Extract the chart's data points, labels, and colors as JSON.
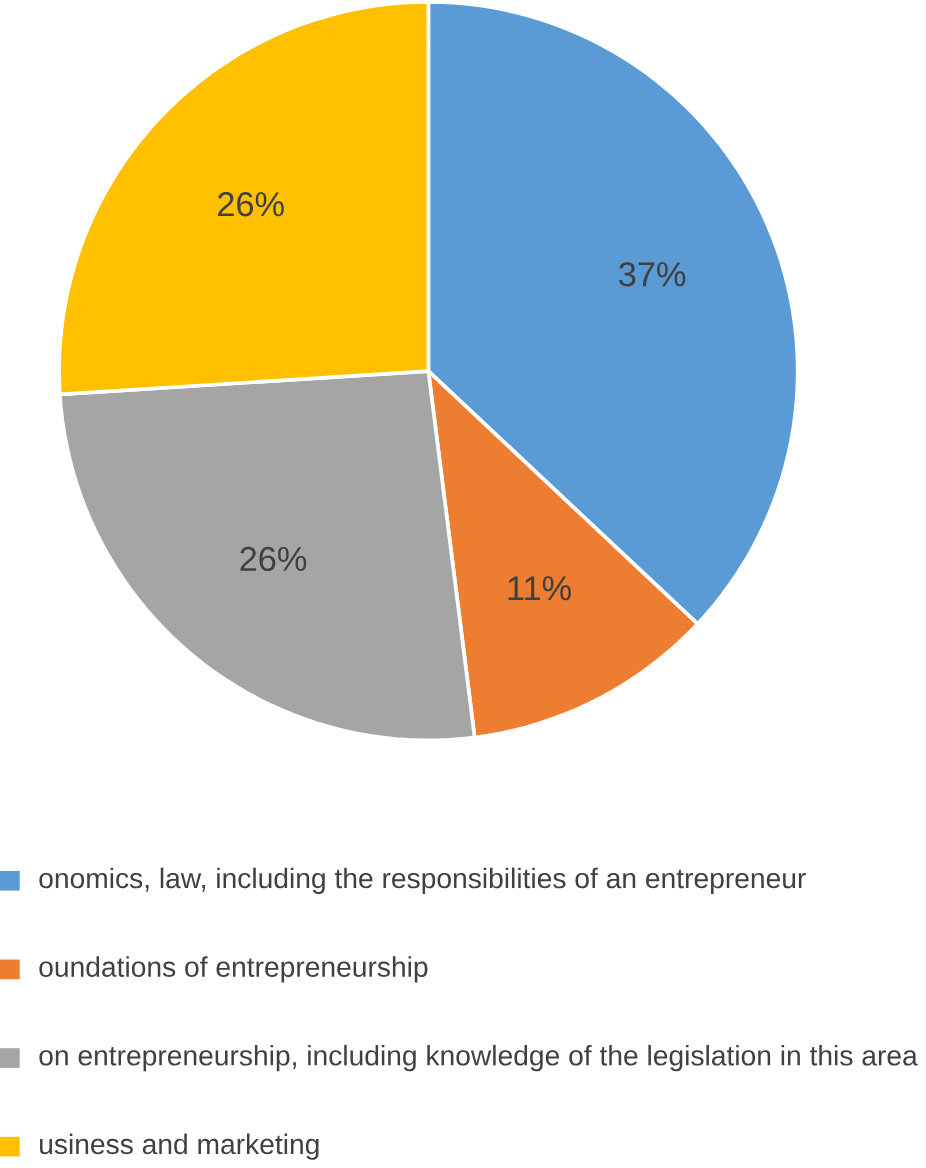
{
  "chart_data": {
    "type": "pie",
    "categories": [
      "onomics, law, including the responsibilities of an entrepreneur",
      "oundations of entrepreneurship",
      "on entrepreneurship, including knowledge of the legislation in this area",
      "usiness and marketing"
    ],
    "values": [
      37,
      11,
      26,
      26
    ],
    "value_labels": [
      "37%",
      "11%",
      "26%",
      "26%"
    ],
    "colors": [
      "#5b9bd5",
      "#ed7d31",
      "#a5a5a5",
      "#ffc000"
    ],
    "legend": "bottom"
  }
}
